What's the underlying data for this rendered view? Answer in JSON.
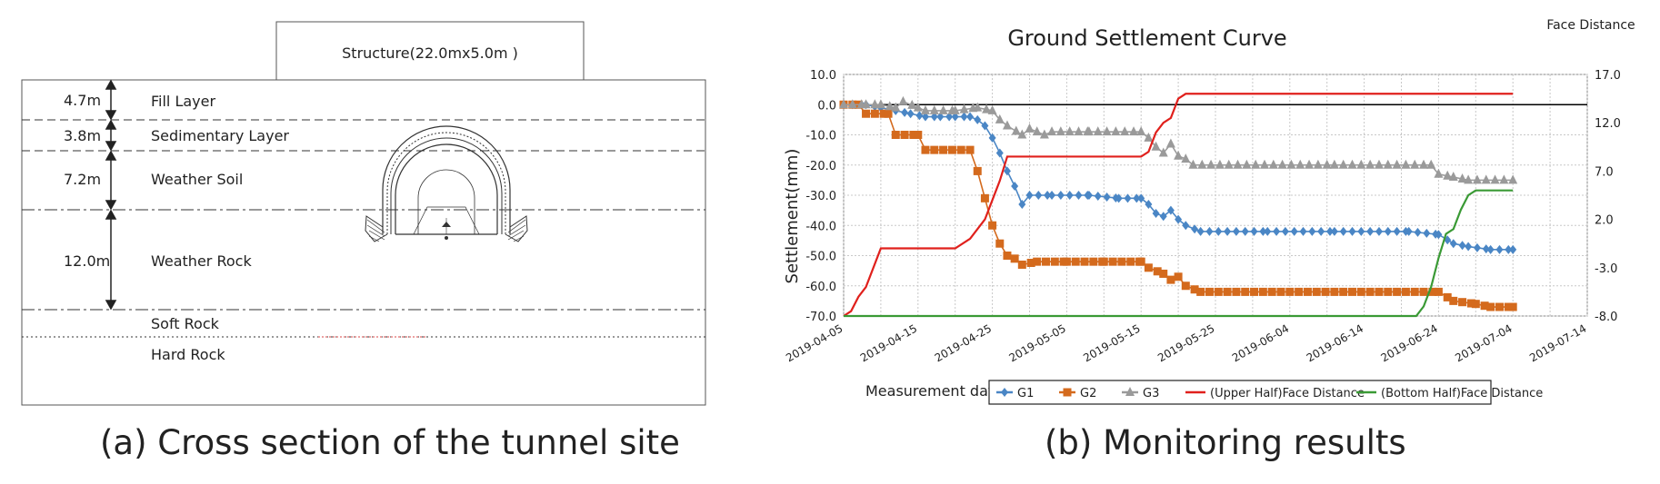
{
  "panel_a": {
    "caption": "(a) Cross section of the tunnel site",
    "structure_label": "Structure(22.0mx5.0m )",
    "layers": [
      {
        "name": "Fill Layer",
        "thickness": "4.7m"
      },
      {
        "name": "Sedimentary Layer",
        "thickness": "3.8m"
      },
      {
        "name": "Weather Soil",
        "thickness": "7.2m"
      },
      {
        "name": "Weather Rock",
        "thickness": "12.0m"
      },
      {
        "name": "Soft Rock",
        "thickness": ""
      },
      {
        "name": "Hard Rock",
        "thickness": ""
      }
    ]
  },
  "panel_b": {
    "caption": "(b) Monitoring results"
  },
  "chart_data": {
    "type": "line",
    "title": "Ground Settlement Curve",
    "xlabel": "Measurement date",
    "ylabel": "Settlement(mm)",
    "y2label": "Face Distance",
    "ylim": [
      -70,
      10
    ],
    "y2lim": [
      -8,
      17
    ],
    "yticks": [
      "10.0",
      "0.0",
      "-10.0",
      "-20.0",
      "-30.0",
      "-40.0",
      "-50.0",
      "-60.0",
      "-70.0"
    ],
    "y2ticks": [
      "17.0",
      "12.0",
      "7.0",
      "2.0",
      "-3.0",
      "-8.0"
    ],
    "xticks": [
      "2019-04-05",
      "2019-04-15",
      "2019-04-25",
      "2019-05-05",
      "2019-05-15",
      "2019-05-25",
      "2019-06-04",
      "2019-06-14",
      "2019-06-24",
      "2019-07-04",
      "2019-07-14"
    ],
    "grid": true,
    "legend_position": "bottom",
    "series": [
      {
        "name": "G1",
        "color": "#4a86c5",
        "marker": "diamond",
        "axis": "left",
        "points": [
          [
            "2019-04-05",
            0
          ],
          [
            "2019-04-08",
            0
          ],
          [
            "2019-04-10",
            -1
          ],
          [
            "2019-04-12",
            -2
          ],
          [
            "2019-04-14",
            -3
          ],
          [
            "2019-04-16",
            -4
          ],
          [
            "2019-04-18",
            -4
          ],
          [
            "2019-04-20",
            -4
          ],
          [
            "2019-04-22",
            -4
          ],
          [
            "2019-04-23",
            -5
          ],
          [
            "2019-04-24",
            -7
          ],
          [
            "2019-04-25",
            -11
          ],
          [
            "2019-04-26",
            -16
          ],
          [
            "2019-04-27",
            -22
          ],
          [
            "2019-04-28",
            -27
          ],
          [
            "2019-04-29",
            -33
          ],
          [
            "2019-04-30",
            -30
          ],
          [
            "2019-05-03",
            -30
          ],
          [
            "2019-05-08",
            -30
          ],
          [
            "2019-05-12",
            -31
          ],
          [
            "2019-05-15",
            -31
          ],
          [
            "2019-05-16",
            -33
          ],
          [
            "2019-05-17",
            -36
          ],
          [
            "2019-05-18",
            -37
          ],
          [
            "2019-05-19",
            -35
          ],
          [
            "2019-05-20",
            -38
          ],
          [
            "2019-05-21",
            -40
          ],
          [
            "2019-05-23",
            -42
          ],
          [
            "2019-06-01",
            -42
          ],
          [
            "2019-06-10",
            -42
          ],
          [
            "2019-06-20",
            -42
          ],
          [
            "2019-06-24",
            -43
          ],
          [
            "2019-06-26",
            -46
          ],
          [
            "2019-06-28",
            -47
          ],
          [
            "2019-07-01",
            -48
          ],
          [
            "2019-07-04",
            -48
          ]
        ]
      },
      {
        "name": "G2",
        "color": "#d46a1d",
        "marker": "square",
        "axis": "left",
        "points": [
          [
            "2019-04-05",
            0
          ],
          [
            "2019-04-07",
            0
          ],
          [
            "2019-04-08",
            -3
          ],
          [
            "2019-04-11",
            -3
          ],
          [
            "2019-04-12",
            -10
          ],
          [
            "2019-04-15",
            -10
          ],
          [
            "2019-04-16",
            -15
          ],
          [
            "2019-04-22",
            -15
          ],
          [
            "2019-04-23",
            -22
          ],
          [
            "2019-04-24",
            -31
          ],
          [
            "2019-04-25",
            -40
          ],
          [
            "2019-04-26",
            -46
          ],
          [
            "2019-04-27",
            -50
          ],
          [
            "2019-04-28",
            -51
          ],
          [
            "2019-04-29",
            -53
          ],
          [
            "2019-05-01",
            -52
          ],
          [
            "2019-05-05",
            -52
          ],
          [
            "2019-05-10",
            -52
          ],
          [
            "2019-05-15",
            -52
          ],
          [
            "2019-05-16",
            -54
          ],
          [
            "2019-05-18",
            -56
          ],
          [
            "2019-05-19",
            -58
          ],
          [
            "2019-05-20",
            -57
          ],
          [
            "2019-05-21",
            -60
          ],
          [
            "2019-05-23",
            -62
          ],
          [
            "2019-06-10",
            -62
          ],
          [
            "2019-06-24",
            -62
          ],
          [
            "2019-06-26",
            -65
          ],
          [
            "2019-06-29",
            -66
          ],
          [
            "2019-07-01",
            -67
          ],
          [
            "2019-07-04",
            -67
          ]
        ]
      },
      {
        "name": "G3",
        "color": "#9a9a9a",
        "marker": "triangle",
        "axis": "left",
        "points": [
          [
            "2019-04-05",
            0
          ],
          [
            "2019-04-08",
            0
          ],
          [
            "2019-04-10",
            0
          ],
          [
            "2019-04-12",
            -1
          ],
          [
            "2019-04-13",
            1
          ],
          [
            "2019-04-15",
            -1
          ],
          [
            "2019-04-16",
            -2
          ],
          [
            "2019-04-20",
            -2
          ],
          [
            "2019-04-23",
            -1
          ],
          [
            "2019-04-25",
            -2
          ],
          [
            "2019-04-26",
            -5
          ],
          [
            "2019-04-27",
            -7
          ],
          [
            "2019-04-29",
            -10
          ],
          [
            "2019-04-30",
            -8
          ],
          [
            "2019-05-01",
            -9
          ],
          [
            "2019-05-02",
            -10
          ],
          [
            "2019-05-03",
            -9
          ],
          [
            "2019-05-08",
            -9
          ],
          [
            "2019-05-15",
            -9
          ],
          [
            "2019-05-16",
            -11
          ],
          [
            "2019-05-17",
            -14
          ],
          [
            "2019-05-18",
            -16
          ],
          [
            "2019-05-19",
            -13
          ],
          [
            "2019-05-20",
            -17
          ],
          [
            "2019-05-21",
            -18
          ],
          [
            "2019-05-22",
            -20
          ],
          [
            "2019-06-10",
            -20
          ],
          [
            "2019-06-23",
            -20
          ],
          [
            "2019-06-24",
            -23
          ],
          [
            "2019-06-26",
            -24
          ],
          [
            "2019-06-28",
            -25
          ],
          [
            "2019-07-04",
            -25
          ]
        ]
      },
      {
        "name": "(Upper Half)Face Distance",
        "color": "#e0201c",
        "marker": "none",
        "axis": "right",
        "points": [
          [
            "2019-04-05",
            -8
          ],
          [
            "2019-04-06",
            -7.5
          ],
          [
            "2019-04-07",
            -6
          ],
          [
            "2019-04-08",
            -5
          ],
          [
            "2019-04-10",
            -1
          ],
          [
            "2019-04-11",
            -1
          ],
          [
            "2019-04-20",
            -1
          ],
          [
            "2019-04-22",
            0
          ],
          [
            "2019-04-24",
            2
          ],
          [
            "2019-04-25",
            4
          ],
          [
            "2019-04-26",
            6
          ],
          [
            "2019-04-27",
            8.5
          ],
          [
            "2019-05-02",
            8.5
          ],
          [
            "2019-05-10",
            8.5
          ],
          [
            "2019-05-15",
            8.5
          ],
          [
            "2019-05-16",
            9
          ],
          [
            "2019-05-17",
            11
          ],
          [
            "2019-05-18",
            12
          ],
          [
            "2019-05-19",
            12.5
          ],
          [
            "2019-05-20",
            14.5
          ],
          [
            "2019-05-21",
            15
          ],
          [
            "2019-06-10",
            15
          ],
          [
            "2019-07-04",
            15
          ]
        ]
      },
      {
        "name": "(Bottom Half)Face Distance",
        "color": "#3a9a35",
        "marker": "none",
        "axis": "right",
        "points": [
          [
            "2019-04-05",
            -8
          ],
          [
            "2019-05-20",
            -8
          ],
          [
            "2019-06-21",
            -8
          ],
          [
            "2019-06-22",
            -7
          ],
          [
            "2019-06-23",
            -5
          ],
          [
            "2019-06-24",
            -2
          ],
          [
            "2019-06-25",
            0.5
          ],
          [
            "2019-06-26",
            1
          ],
          [
            "2019-06-27",
            3
          ],
          [
            "2019-06-28",
            4.5
          ],
          [
            "2019-06-29",
            5
          ],
          [
            "2019-07-04",
            5
          ]
        ]
      }
    ]
  }
}
